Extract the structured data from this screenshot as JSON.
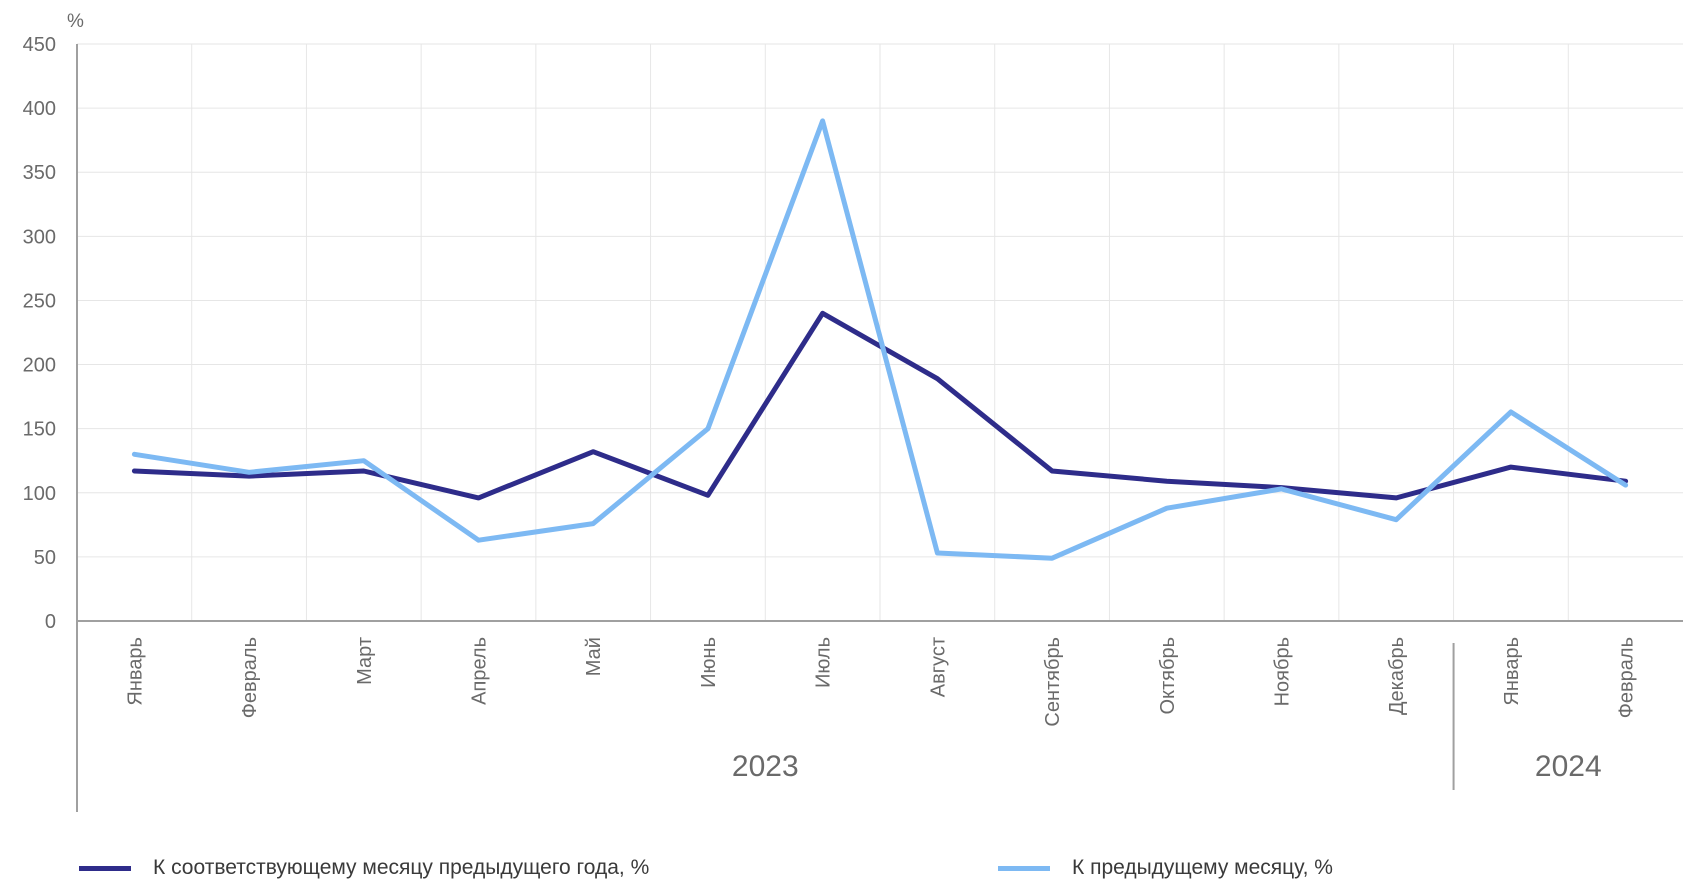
{
  "chart_data": {
    "type": "line",
    "y_unit": "%",
    "ylim": [
      0,
      450
    ],
    "yticks": [
      0,
      50,
      100,
      150,
      200,
      250,
      300,
      350,
      400,
      450
    ],
    "grid": true,
    "legend_position": "bottom",
    "categories": [
      "Январь",
      "Февраль",
      "Март",
      "Апрель",
      "Май",
      "Июнь",
      "Июль",
      "Август",
      "Сентябрь",
      "Октябрь",
      "Ноябрь",
      "Декабрь",
      "Январь",
      "Февраль"
    ],
    "year_groups": [
      {
        "label": "2023",
        "from": 0,
        "to": 11
      },
      {
        "label": "2024",
        "from": 12,
        "to": 13
      }
    ],
    "series": [
      {
        "name": "К соответствующему месяцу предыдущего года, %",
        "color": "#2e2c8a",
        "values": [
          117,
          113,
          117,
          96,
          132,
          98,
          240,
          189,
          117,
          109,
          104,
          96,
          120,
          109
        ]
      },
      {
        "name": "К предыдущему месяцу, %",
        "color": "#7db9f3",
        "values": [
          130,
          116,
          125,
          63,
          76,
          150,
          390,
          53,
          49,
          88,
          103,
          79,
          163,
          106
        ]
      }
    ]
  }
}
